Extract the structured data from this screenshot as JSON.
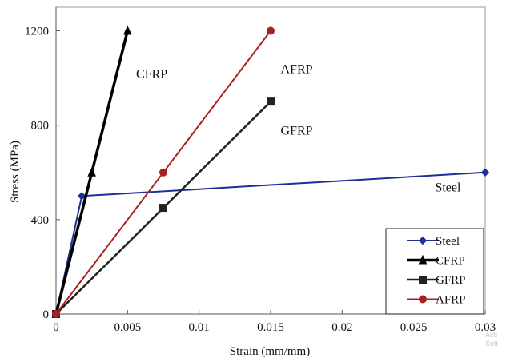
{
  "chart_data": {
    "type": "line",
    "title": "",
    "xlabel": "Strain (mm/mm)",
    "ylabel": "Stress (MPa)",
    "xlim": [
      0,
      0.03
    ],
    "ylim": [
      0,
      1300
    ],
    "x_ticks": [
      "0",
      "0.005",
      "0.01",
      "0.015",
      "0.02",
      "0.025",
      "0.03"
    ],
    "x_tick_values": [
      0,
      0.005,
      0.01,
      0.015,
      0.02,
      0.025,
      0.03
    ],
    "y_ticks": [
      "0",
      "400",
      "800",
      "1200"
    ],
    "y_tick_values": [
      0,
      400,
      800,
      1200
    ],
    "grid": false,
    "legend_position": "bottom-right",
    "series": [
      {
        "name": "Steel",
        "color": "#1f2f9a",
        "marker": "diamond",
        "points": [
          [
            0,
            0
          ],
          [
            0.0018,
            500
          ],
          [
            0.03,
            600
          ]
        ]
      },
      {
        "name": "CFRP",
        "color": "#000000",
        "marker": "triangle",
        "points": [
          [
            0,
            0
          ],
          [
            0.0025,
            600
          ],
          [
            0.005,
            1200
          ]
        ]
      },
      {
        "name": "GFRP",
        "color": "#222222",
        "marker": "square",
        "points": [
          [
            0,
            0
          ],
          [
            0.0075,
            450
          ],
          [
            0.015,
            900
          ]
        ]
      },
      {
        "name": "AFRP",
        "color": "#a82020",
        "marker": "circle",
        "points": [
          [
            0,
            0
          ],
          [
            0.0075,
            600
          ],
          [
            0.015,
            1200
          ]
        ]
      }
    ],
    "annotations": [
      {
        "text": "CFRP",
        "x": 0.0056,
        "y": 1000
      },
      {
        "text": "AFRP",
        "x": 0.0157,
        "y": 1020
      },
      {
        "text": "GFRP",
        "x": 0.0157,
        "y": 760
      },
      {
        "text": "Steel",
        "x": 0.0265,
        "y": 520
      }
    ]
  },
  "watermark": {
    "line1": "Acti",
    "line2": "Sett"
  }
}
